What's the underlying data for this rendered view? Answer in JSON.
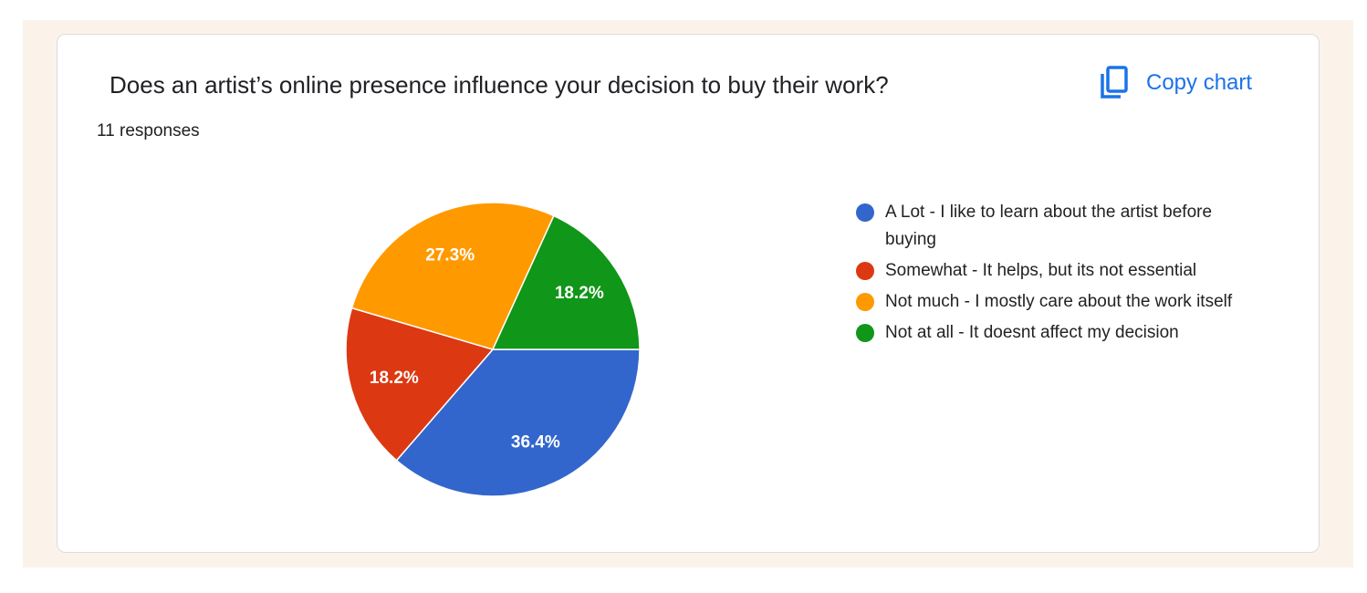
{
  "chart_data": {
    "type": "pie",
    "title": "Does an artist’s online presence influence your decision to buy their work?",
    "subtitle": "11 responses",
    "categories": [
      "A Lot - I like to learn about the artist before buying",
      "Somewhat - It helps, but its not essential",
      "Not much - I mostly care about the work itself",
      "Not at all - It doesnt affect my decision"
    ],
    "values": [
      36.4,
      18.2,
      27.3,
      18.2
    ],
    "value_labels": [
      "36.4%",
      "18.2%",
      "27.3%",
      "18.2%"
    ],
    "colors": [
      "#3366cc",
      "#dc3912",
      "#ff9900",
      "#109618"
    ],
    "legend": "right"
  },
  "ui": {
    "copy_button": "Copy chart"
  }
}
